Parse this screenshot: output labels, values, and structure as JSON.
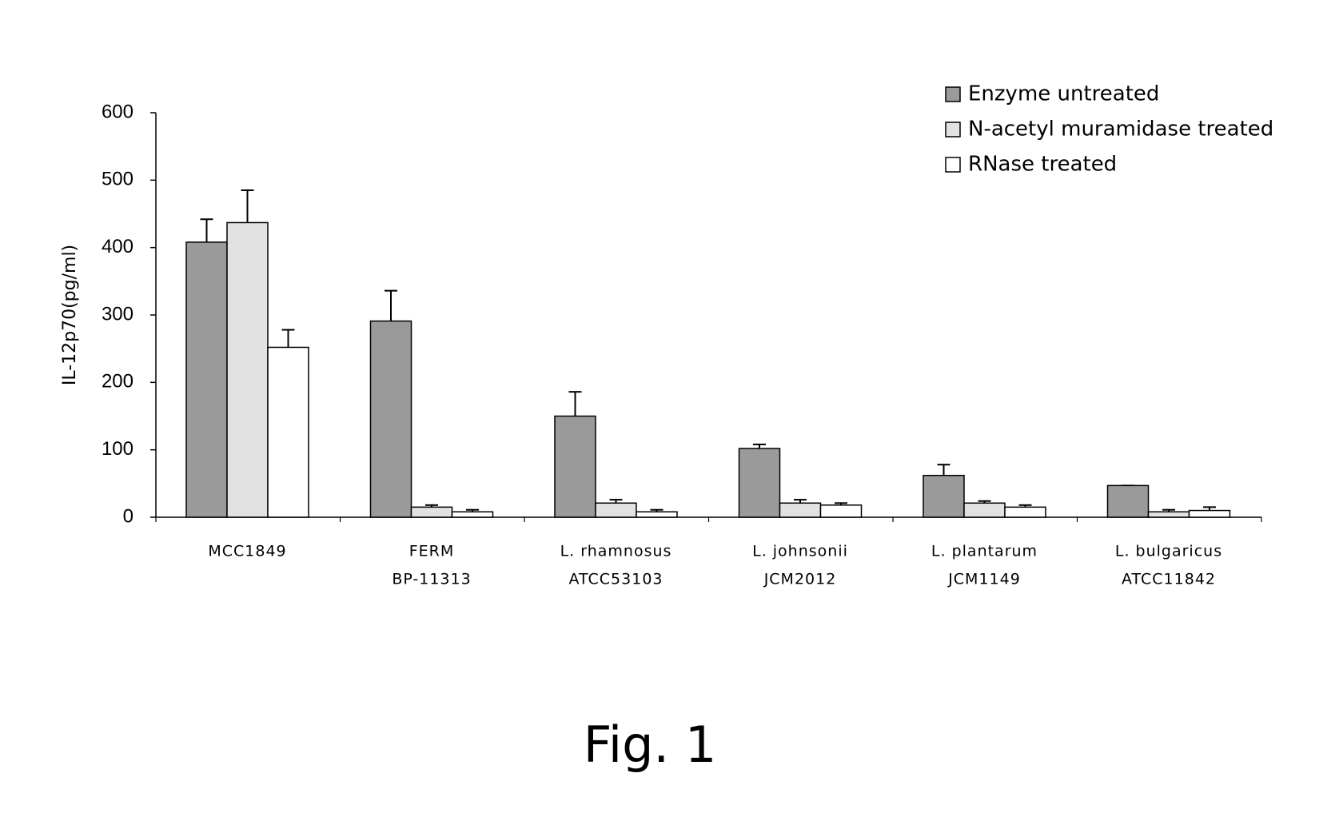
{
  "chart_data": {
    "type": "bar",
    "y_label": "IL-12p70(pg/ml)",
    "caption": "Fig. 1",
    "categories": [
      [
        "MCC1849"
      ],
      [
        "FERM",
        "BP-11313"
      ],
      [
        "L. rhamnosus",
        "ATCC53103"
      ],
      [
        "L. johnsonii",
        "JCM2012"
      ],
      [
        "L. plantarum",
        "JCM1149"
      ],
      [
        "L. bulgaricus",
        "ATCC11842"
      ]
    ],
    "series": [
      {
        "name": "Enzyme untreated",
        "color": "#9a9a9a",
        "values": [
          408,
          291,
          150,
          102,
          62,
          47
        ],
        "errors": [
          34,
          45,
          36,
          6,
          16,
          0
        ]
      },
      {
        "name": "N-acetyl muramidase treated",
        "color": "#e2e2e2",
        "values": [
          437,
          15,
          21,
          21,
          21,
          8
        ],
        "errors": [
          48,
          3,
          5,
          5,
          3,
          3
        ]
      },
      {
        "name": "RNase treated",
        "color": "#ffffff",
        "values": [
          252,
          8,
          8,
          18,
          15,
          10
        ],
        "errors": [
          26,
          3,
          3,
          3,
          3,
          5
        ]
      }
    ],
    "ylim": [
      0,
      600
    ],
    "yticks": [
      0,
      100,
      200,
      300,
      400,
      500,
      600
    ],
    "grid": false,
    "legend": "top-right"
  }
}
